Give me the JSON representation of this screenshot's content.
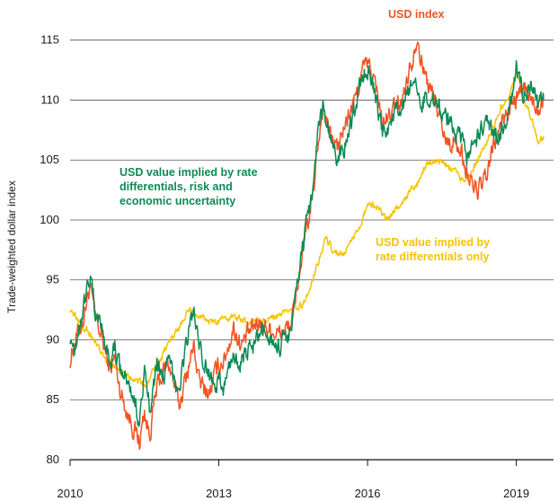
{
  "chart_data": {
    "type": "line",
    "title": "",
    "xlabel": "",
    "ylabel": "Trade-weighted dollar index",
    "xlim": [
      2010.0,
      2019.75
    ],
    "ylim": [
      80,
      117
    ],
    "y_ticks": [
      80,
      85,
      90,
      95,
      100,
      105,
      110,
      115
    ],
    "y_tick_labels": [
      "80",
      "85",
      "90",
      "95",
      "100",
      "105",
      "110",
      "115"
    ],
    "x_ticks": [
      2010,
      2013,
      2016,
      2019
    ],
    "x_tick_labels": [
      "2010",
      "2013",
      "2016",
      "2019"
    ],
    "grid": "horizontal",
    "legend": "none",
    "annotations": [
      {
        "lines": [
          "USD index"
        ],
        "series": "USD index"
      },
      {
        "lines": [
          "USD value implied by rate",
          "differentials, risk and",
          "economic uncertainty"
        ],
        "series": "USD value implied by rate differentials, risk and economic uncertainty"
      },
      {
        "lines": [
          "USD value implied by",
          "rate differentials only"
        ],
        "series": "USD value implied by rate differentials only"
      }
    ],
    "series": [
      {
        "name": "USD index",
        "color": "#f05423",
        "x": [
          2010.0,
          2010.1,
          2010.25,
          2010.4,
          2010.5,
          2010.65,
          2010.8,
          2010.9,
          2011.0,
          2011.15,
          2011.3,
          2011.4,
          2011.5,
          2011.6,
          2011.75,
          2011.9,
          2012.0,
          2012.2,
          2012.4,
          2012.5,
          2012.6,
          2012.8,
          2013.0,
          2013.1,
          2013.3,
          2013.45,
          2013.6,
          2013.8,
          2014.0,
          2014.2,
          2014.4,
          2014.5,
          2014.6,
          2014.75,
          2014.9,
          2015.0,
          2015.1,
          2015.25,
          2015.4,
          2015.6,
          2015.75,
          2015.9,
          2016.0,
          2016.15,
          2016.3,
          2016.5,
          2016.7,
          2016.8,
          2016.88,
          2017.0,
          2017.1,
          2017.25,
          2017.4,
          2017.6,
          2017.75,
          2017.9,
          2018.0,
          2018.1,
          2018.25,
          2018.4,
          2018.5,
          2018.65,
          2018.8,
          2019.0,
          2019.15,
          2019.3,
          2019.45,
          2019.55
        ],
        "values": [
          88.3,
          90.0,
          91.5,
          94.5,
          92.0,
          90.0,
          87.5,
          88.5,
          86.0,
          84.0,
          82.5,
          81.5,
          84.0,
          82.0,
          86.0,
          87.5,
          88.0,
          84.5,
          88.0,
          89.5,
          86.5,
          85.5,
          88.0,
          88.3,
          91.0,
          89.5,
          90.5,
          91.5,
          91.0,
          90.5,
          91.0,
          92.0,
          95.0,
          98.5,
          102.0,
          106.5,
          109.5,
          107.0,
          106.0,
          108.5,
          110.0,
          112.5,
          113.0,
          111.5,
          108.0,
          109.0,
          110.0,
          112.0,
          113.0,
          115.5,
          113.0,
          111.0,
          109.5,
          106.5,
          106.5,
          105.5,
          104.0,
          103.0,
          102.5,
          103.5,
          105.5,
          107.5,
          109.0,
          110.0,
          111.0,
          110.0,
          109.5,
          110.5
        ]
      },
      {
        "name": "USD value implied by rate differentials, risk and economic uncertainty",
        "color": "#0e8a55",
        "x": [
          2010.0,
          2010.1,
          2010.25,
          2010.4,
          2010.5,
          2010.65,
          2010.8,
          2010.9,
          2011.0,
          2011.15,
          2011.3,
          2011.4,
          2011.5,
          2011.6,
          2011.75,
          2011.9,
          2012.0,
          2012.2,
          2012.4,
          2012.5,
          2012.6,
          2012.8,
          2013.0,
          2013.1,
          2013.3,
          2013.45,
          2013.6,
          2013.8,
          2014.0,
          2014.2,
          2014.4,
          2014.5,
          2014.6,
          2014.75,
          2014.9,
          2015.0,
          2015.1,
          2015.25,
          2015.4,
          2015.6,
          2015.75,
          2015.9,
          2016.0,
          2016.15,
          2016.3,
          2016.5,
          2016.7,
          2016.8,
          2016.88,
          2017.0,
          2017.1,
          2017.25,
          2017.4,
          2017.6,
          2017.75,
          2017.9,
          2018.0,
          2018.1,
          2018.25,
          2018.4,
          2018.5,
          2018.65,
          2018.8,
          2019.0,
          2019.15,
          2019.3,
          2019.45,
          2019.55
        ],
        "values": [
          90.3,
          89.5,
          92.5,
          95.5,
          92.5,
          91.0,
          88.0,
          89.5,
          87.5,
          86.5,
          85.0,
          83.5,
          87.0,
          84.5,
          88.0,
          87.0,
          88.0,
          86.0,
          91.0,
          92.5,
          89.0,
          87.0,
          86.5,
          86.0,
          89.0,
          88.0,
          89.0,
          90.0,
          90.5,
          89.5,
          90.5,
          91.5,
          95.5,
          99.0,
          103.0,
          107.5,
          109.5,
          106.5,
          105.0,
          107.0,
          109.5,
          112.0,
          112.5,
          110.5,
          107.0,
          108.5,
          109.5,
          110.0,
          111.0,
          110.5,
          110.0,
          110.5,
          109.5,
          108.5,
          107.5,
          106.5,
          105.0,
          106.0,
          107.0,
          108.0,
          107.5,
          107.0,
          108.5,
          112.5,
          110.5,
          111.0,
          109.5,
          110.0
        ]
      },
      {
        "name": "USD value implied by rate differentials only",
        "color": "#f5c400",
        "x": [
          2010.0,
          2010.2,
          2010.4,
          2010.6,
          2010.8,
          2011.0,
          2011.2,
          2011.4,
          2011.5,
          2011.7,
          2011.85,
          2012.0,
          2012.2,
          2012.4,
          2012.6,
          2012.8,
          2013.0,
          2013.3,
          2013.6,
          2013.9,
          2014.2,
          2014.5,
          2014.7,
          2014.85,
          2015.0,
          2015.15,
          2015.3,
          2015.5,
          2015.7,
          2015.9,
          2016.0,
          2016.2,
          2016.4,
          2016.6,
          2016.8,
          2017.0,
          2017.2,
          2017.4,
          2017.6,
          2017.8,
          2017.95,
          2018.1,
          2018.3,
          2018.5,
          2018.7,
          2018.85,
          2019.0,
          2019.15,
          2019.3,
          2019.45,
          2019.55
        ],
        "values": [
          92.5,
          91.5,
          90.5,
          89.0,
          88.0,
          87.5,
          87.0,
          86.5,
          86.0,
          87.5,
          88.5,
          90.0,
          91.0,
          92.5,
          92.0,
          91.5,
          91.5,
          92.0,
          91.5,
          91.5,
          92.0,
          92.5,
          93.0,
          94.5,
          96.5,
          98.5,
          97.5,
          97.0,
          98.5,
          100.0,
          101.5,
          101.0,
          100.0,
          101.0,
          102.0,
          103.0,
          104.5,
          105.0,
          104.5,
          104.0,
          103.0,
          104.0,
          105.5,
          107.5,
          109.5,
          110.0,
          112.5,
          110.0,
          108.5,
          106.5,
          107.0
        ]
      }
    ]
  }
}
